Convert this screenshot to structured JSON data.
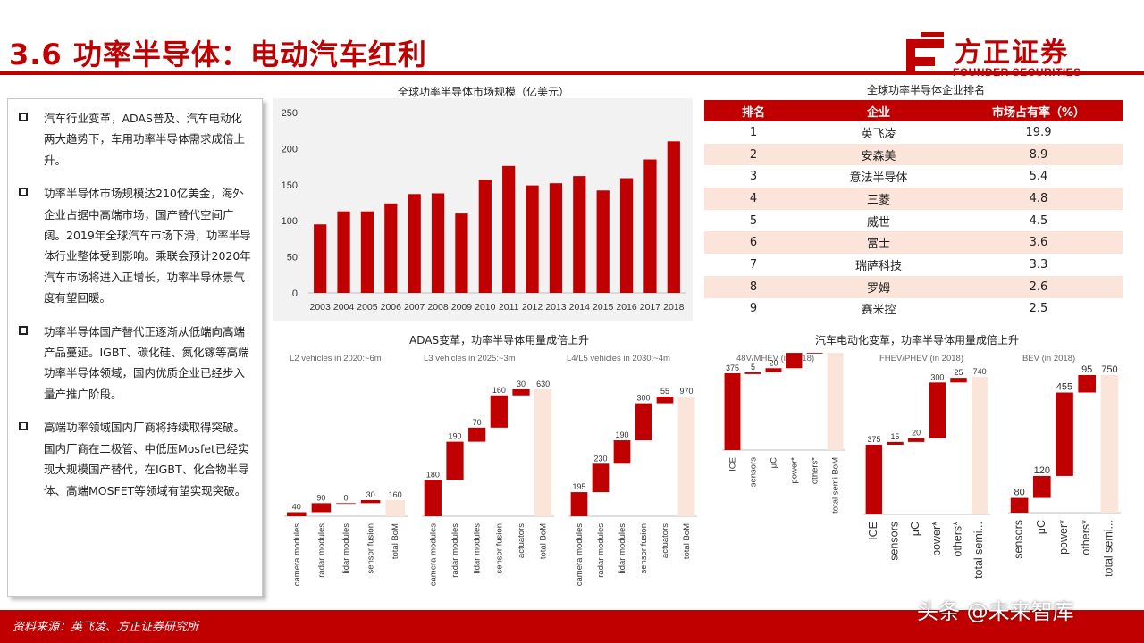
{
  "header": {
    "title": "3.6 功率半导体：电动汽车红利"
  },
  "logo": {
    "name": "方正证券",
    "en": "FOUNDER SECURITIES",
    "color": "#c00000"
  },
  "bullets": [
    "汽车行业变革，ADAS普及、汽车电动化两大趋势下，车用功率半导体需求成倍上升。",
    "功率半导体市场规模达210亿美金，海外企业占据中高端市场，国产替代空间广阔。2019年全球汽车市场下滑，功率半导体行业整体受到影响。乘联会预计2020年汽车市场将进入正增长，功率半导体景气度有望回暖。",
    "功率半导体国产替代正逐渐从低端向高端产品蔓延。IGBT、碳化硅、氮化镓等高端功率半导体领域，国内优质企业已经步入量产推广阶段。",
    "高端功率领域国内厂商将持续取得突破。国内厂商在二极管、中低压Mosfet已经实现大规模国产替代，在IGBT、化合物半导体、高端MOSFET等领域有望实现突破。"
  ],
  "ranking": {
    "title": "全球功率半导体企业排名",
    "headers": [
      "排名",
      "企业",
      "市场占有率（%）"
    ],
    "rows": [
      [
        "1",
        "英飞凌",
        "19.9"
      ],
      [
        "2",
        "安森美",
        "8.9"
      ],
      [
        "3",
        "意法半导体",
        "5.4"
      ],
      [
        "4",
        "三菱",
        "4.8"
      ],
      [
        "5",
        "威世",
        "4.5"
      ],
      [
        "6",
        "富士",
        "3.6"
      ],
      [
        "7",
        "瑞萨科技",
        "3.3"
      ],
      [
        "8",
        "罗姆",
        "2.6"
      ],
      [
        "9",
        "赛米控",
        "2.5"
      ]
    ]
  },
  "footer": {
    "source": "资料来源：英飞凌、方正证券研究所",
    "watermark": "头条 @未来智库"
  },
  "colors": {
    "brand": "#c00000",
    "bar": "#c00000",
    "total": "#fbe4d9"
  },
  "chart_data": [
    {
      "type": "bar",
      "title": "全球功率半导体市场规模（亿美元）",
      "categories": [
        "2003",
        "2004",
        "2005",
        "2006",
        "2007",
        "2008",
        "2009",
        "2010",
        "2011",
        "2012",
        "2013",
        "2014",
        "2015",
        "2016",
        "2017",
        "2018"
      ],
      "values": [
        95,
        113,
        113,
        124,
        137,
        138,
        110,
        157,
        176,
        149,
        152,
        162,
        142,
        159,
        185,
        210
      ],
      "ylim": [
        0,
        250
      ],
      "yticks": [
        0,
        50,
        100,
        150,
        200,
        250
      ],
      "grid": false
    },
    {
      "type": "bar",
      "group_title": "ADAS变革，功率半导体用量成倍上升",
      "subtitle": "L2 vehicles in 2020:~6m",
      "categories": [
        "camera modules",
        "radar modules",
        "lidar modules",
        "sensor fusion",
        "total BoM"
      ],
      "values": [
        40,
        90,
        0,
        30,
        160
      ],
      "labels": [
        "40",
        "90",
        "0",
        "30",
        "160"
      ],
      "ylim": [
        0,
        160
      ],
      "waterfall": true
    },
    {
      "type": "bar",
      "subtitle": "L3 vehicles in 2025:~3m",
      "categories": [
        "camera modules",
        "radar modules",
        "lidar modules",
        "sensor fusion",
        "actuators",
        "total BoM"
      ],
      "values": [
        180,
        190,
        70,
        160,
        30,
        630
      ],
      "labels": [
        "180",
        "190",
        "70",
        "160",
        "30",
        "630"
      ],
      "ylim": [
        0,
        630
      ],
      "waterfall": true
    },
    {
      "type": "bar",
      "subtitle": "L4/L5 vehicles in 2030:~4m",
      "categories": [
        "camera modules",
        "radar modules",
        "lidar modules",
        "sensor fusion",
        "actuators",
        "total BoM"
      ],
      "values": [
        195,
        230,
        190,
        300,
        55,
        970
      ],
      "labels": [
        "195",
        "230",
        "190",
        "300",
        "55",
        "970"
      ],
      "ylim": [
        0,
        970
      ],
      "waterfall": true
    },
    {
      "type": "bar",
      "group_title": "汽车电动化变革，功率半导体用量成倍上升",
      "subtitle": "48V/MHEV (in 2018)",
      "categories": [
        "ICE",
        "sensors",
        "μC",
        "power*",
        "others*",
        "total semi BoM"
      ],
      "values": [
        375,
        5,
        20,
        75,
        0,
        475
      ],
      "labels": [
        "375",
        "5",
        "20",
        "75",
        "0",
        "475"
      ],
      "ylim": [
        0,
        750
      ],
      "waterfall": true
    },
    {
      "type": "bar",
      "subtitle": "FHEV/PHEV (in 2018)",
      "categories": [
        "ICE",
        "sensors",
        "μC",
        "power*",
        "others*",
        "total semi..."
      ],
      "values": [
        375,
        15,
        20,
        300,
        25,
        740
      ],
      "labels": [
        "375",
        "15",
        "20",
        "300",
        "25",
        "740"
      ],
      "ylim": [
        0,
        750
      ],
      "waterfall": true
    },
    {
      "type": "bar",
      "subtitle": "BEV (in 2018)",
      "categories": [
        "sensors",
        "μC",
        "power*",
        "others*",
        "total semi..."
      ],
      "values": [
        80,
        120,
        455,
        95,
        750
      ],
      "labels": [
        "80",
        "120",
        "455",
        "95",
        "750"
      ],
      "ylim": [
        0,
        750
      ],
      "waterfall": true
    }
  ]
}
